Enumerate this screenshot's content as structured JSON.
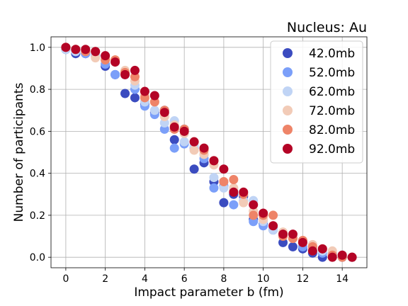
{
  "chart_data": {
    "type": "scatter",
    "title": "Nucleus: Au",
    "xlabel": "Impact parameter b (fm)",
    "ylabel": "Number of participants",
    "xlim": [
      -0.75,
      15.25
    ],
    "ylim": [
      -0.05,
      1.05
    ],
    "xticks": [
      0,
      2,
      4,
      6,
      8,
      10,
      12,
      14
    ],
    "yticks": [
      0.0,
      0.2,
      0.4,
      0.6,
      0.8,
      1.0
    ],
    "xtick_labels": [
      "0",
      "2",
      "4",
      "6",
      "8",
      "10",
      "12",
      "14"
    ],
    "ytick_labels": [
      "0.0",
      "0.2",
      "0.4",
      "0.6",
      "0.8",
      "1.0"
    ],
    "grid": true,
    "legend_position": "top-right",
    "x": [
      0,
      0.5,
      1,
      1.5,
      2,
      2.5,
      3,
      3.5,
      4,
      4.5,
      5,
      5.5,
      6,
      6.5,
      7,
      7.5,
      8,
      8.5,
      9,
      9.5,
      10,
      10.5,
      11,
      11.5,
      12,
      12.5,
      13,
      13.5,
      14,
      14.5
    ],
    "series": [
      {
        "name": "42.0mb",
        "color": "#3b4cc0",
        "values": [
          0.99,
          0.97,
          0.97,
          0.96,
          0.91,
          0.87,
          0.78,
          0.76,
          0.73,
          0.69,
          0.7,
          0.56,
          0.61,
          0.42,
          0.45,
          0.36,
          0.26,
          0.3,
          0.29,
          0.18,
          0.16,
          0.13,
          0.07,
          0.05,
          0.04,
          0.02,
          0.0,
          0.01,
          0.0,
          0.0
        ]
      },
      {
        "name": "52.0mb",
        "color": "#7b9ff9",
        "values": [
          0.99,
          0.98,
          0.97,
          0.96,
          0.92,
          0.87,
          0.87,
          0.8,
          0.72,
          0.68,
          0.61,
          0.52,
          0.54,
          0.52,
          0.47,
          0.33,
          0.34,
          0.25,
          0.27,
          0.17,
          0.15,
          0.14,
          0.11,
          0.09,
          0.05,
          0.03,
          0.02,
          0.02,
          0.01,
          0.0
        ]
      },
      {
        "name": "62.0mb",
        "color": "#c0d4f5",
        "values": [
          0.99,
          0.98,
          0.98,
          0.96,
          0.94,
          0.93,
          0.87,
          0.82,
          0.74,
          0.7,
          0.64,
          0.65,
          0.55,
          0.53,
          0.49,
          0.38,
          0.33,
          0.32,
          0.27,
          0.27,
          0.17,
          0.13,
          0.11,
          0.09,
          0.07,
          0.05,
          0.03,
          0.02,
          0.01,
          0.0
        ]
      },
      {
        "name": "72.0mb",
        "color": "#f2cbb7",
        "values": [
          1.0,
          0.99,
          0.98,
          0.95,
          0.95,
          0.94,
          0.89,
          0.84,
          0.77,
          0.74,
          0.67,
          0.63,
          0.59,
          0.51,
          0.49,
          0.44,
          0.36,
          0.33,
          0.26,
          0.22,
          0.18,
          0.15,
          0.12,
          0.09,
          0.08,
          0.06,
          0.04,
          0.03,
          0.01,
          0.0
        ]
      },
      {
        "name": "82.0mb",
        "color": "#ee8468",
        "values": [
          1.0,
          0.99,
          0.98,
          0.98,
          0.94,
          0.94,
          0.88,
          0.86,
          0.76,
          0.74,
          0.7,
          0.61,
          0.61,
          0.55,
          0.51,
          0.46,
          0.36,
          0.37,
          0.3,
          0.2,
          0.2,
          0.2,
          0.1,
          0.09,
          0.08,
          0.05,
          0.04,
          0.01,
          0.0,
          0.0
        ]
      },
      {
        "name": "92.0mb",
        "color": "#b40426",
        "values": [
          1.0,
          0.99,
          0.99,
          0.98,
          0.96,
          0.93,
          0.87,
          0.89,
          0.79,
          0.77,
          0.69,
          0.62,
          0.6,
          0.55,
          0.52,
          0.46,
          0.42,
          0.31,
          0.31,
          0.25,
          0.21,
          0.15,
          0.11,
          0.11,
          0.07,
          0.03,
          0.04,
          0.0,
          0.01,
          0.0
        ]
      }
    ]
  }
}
